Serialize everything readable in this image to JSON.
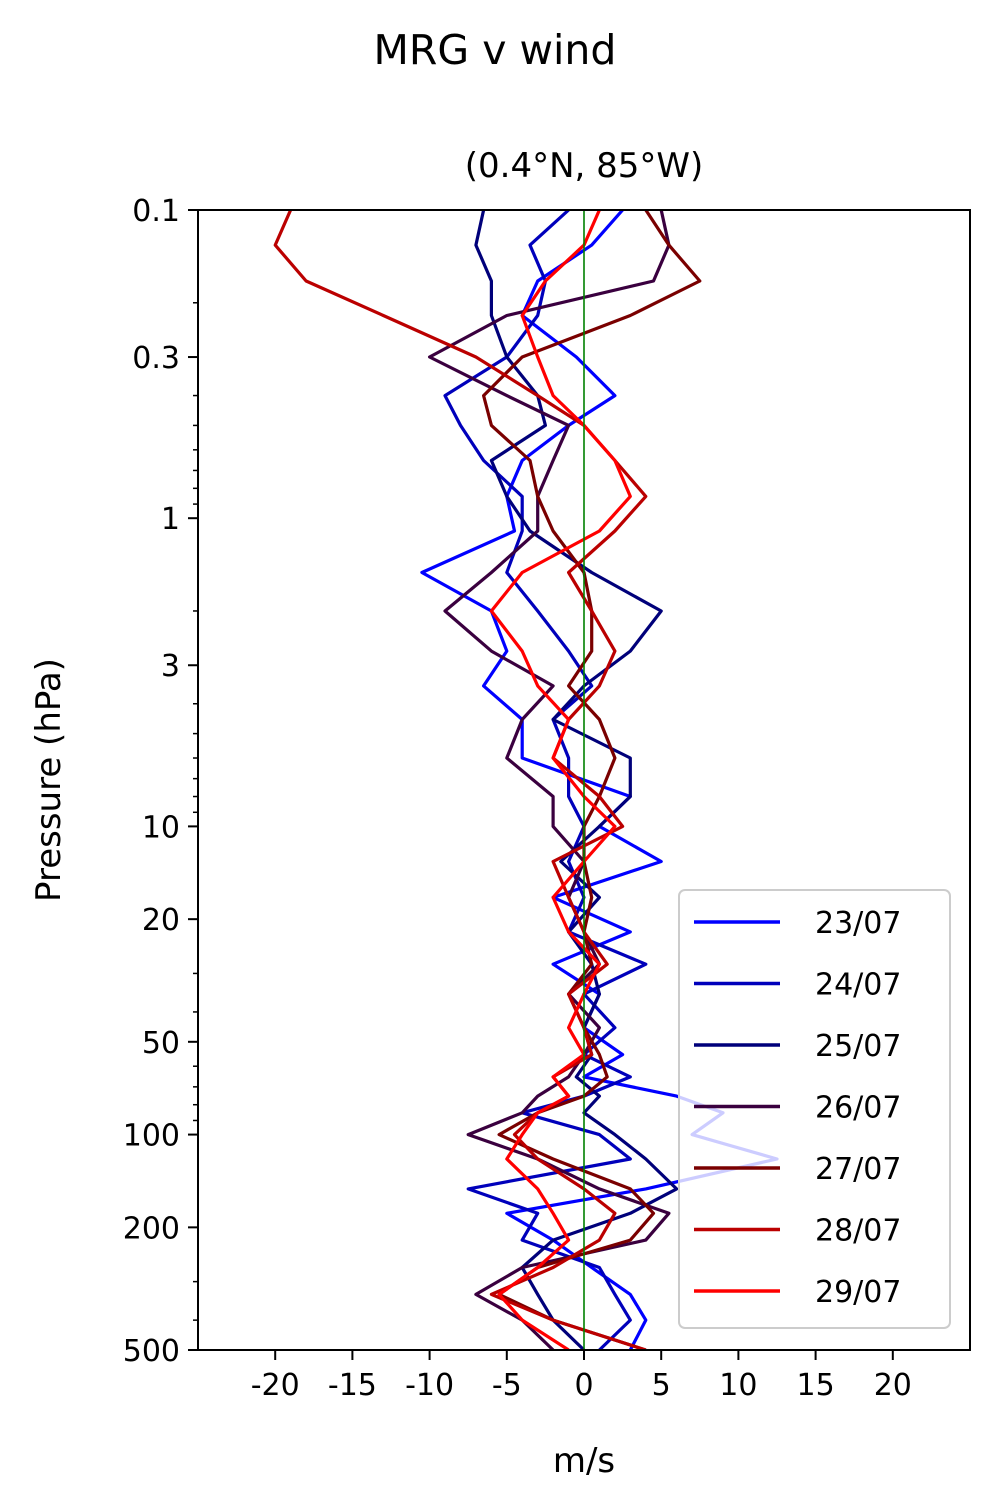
{
  "figure": {
    "title": "MRG v wind",
    "subtitle": "(0.4°N, 85°W)"
  },
  "colors": {
    "23/07": "#0000ff",
    "24/07": "#0000bb",
    "25/07": "#00007a",
    "26/07": "#3a003f",
    "27/07": "#7a0000",
    "28/07": "#bb0000",
    "29/07": "#ff0000",
    "zero_line": "#008000"
  },
  "chart_data": {
    "type": "line",
    "title": "(0.4°N, 85°W)",
    "xlabel": "m/s",
    "ylabel": "Pressure (hPa)",
    "xlim": [
      -25,
      25
    ],
    "ylim": [
      500,
      0.1
    ],
    "yscale": "log",
    "y_inverted": true,
    "xticks": [
      -20,
      -15,
      -10,
      -5,
      0,
      5,
      10,
      15,
      20
    ],
    "xtick_labels": [
      "-20",
      "-15",
      "-10",
      "-5",
      "0",
      "5",
      "10",
      "15",
      "20"
    ],
    "yticks": [
      0.1,
      0.3,
      1,
      3,
      10,
      20,
      50,
      100,
      200,
      500
    ],
    "ytick_labels": [
      "0.1",
      "0.3",
      "1",
      "3",
      "10",
      "20",
      "50",
      "100",
      "200",
      "500"
    ],
    "legend": "lower-right",
    "zero_line": 0,
    "pressure": [
      0.1,
      0.13,
      0.17,
      0.22,
      0.3,
      0.4,
      0.5,
      0.65,
      0.85,
      1.1,
      1.5,
      2,
      2.7,
      3.5,
      4.5,
      6,
      8,
      10,
      13,
      17,
      22,
      28,
      35,
      45,
      55,
      65,
      75,
      85,
      100,
      120,
      150,
      180,
      220,
      270,
      330,
      400,
      500
    ],
    "series": [
      {
        "name": "23/07",
        "values": [
          2.5,
          0.5,
          -3,
          -4,
          -0.5,
          2,
          -1,
          -4,
          -5,
          -4.5,
          -10.5,
          -6,
          -5,
          -6.5,
          -4,
          -4,
          3,
          1,
          5,
          -2,
          3,
          -2,
          1,
          0,
          2.5,
          0,
          6,
          9,
          7,
          12.5,
          4,
          -5,
          -2,
          0.5,
          3,
          4,
          3
        ]
      },
      {
        "name": "24/07",
        "values": [
          -1,
          -3.5,
          -2.5,
          -3,
          -5,
          -9,
          -8,
          -6.5,
          -4,
          -4,
          -5,
          -3,
          -1,
          0.5,
          -2,
          -1,
          -1,
          0,
          -1,
          0,
          -1,
          4,
          0,
          2,
          0,
          3,
          0,
          -4,
          1,
          3,
          -7.5,
          -3,
          -4,
          1,
          2,
          3,
          1
        ]
      },
      {
        "name": "25/07",
        "values": [
          -6.5,
          -7,
          -6,
          -6,
          -5,
          -3,
          -2.5,
          -6,
          -5,
          -3.5,
          0.5,
          5,
          3,
          0,
          -2,
          3,
          3,
          1,
          -1.5,
          1,
          -1,
          0.5,
          1,
          0,
          0.5,
          -0.5,
          1,
          0,
          2,
          4,
          6,
          3,
          -2,
          -4,
          -3,
          -2,
          0
        ]
      },
      {
        "name": "26/07",
        "values": [
          5,
          5.5,
          4.5,
          -5,
          -10,
          -5,
          -1,
          -2,
          -3,
          -3,
          -6,
          -9,
          -6,
          -2,
          -4,
          -5,
          -2,
          -2,
          0,
          -1,
          0,
          1,
          -1,
          1,
          0,
          -1,
          -3,
          -4,
          -7.5,
          -3,
          1,
          5.5,
          4,
          -4,
          -7,
          -4,
          -2
        ]
      },
      {
        "name": "27/07",
        "values": [
          4,
          5.5,
          7.5,
          3,
          -4,
          -6.5,
          -6,
          -3.5,
          -3,
          -2,
          0,
          0.5,
          0.5,
          -1,
          1,
          2,
          1,
          0,
          0,
          0.5,
          0,
          0.5,
          -1,
          0,
          1,
          1.5,
          0,
          -3,
          -5.5,
          -2,
          3,
          4.5,
          3,
          -3,
          -5.5,
          -2,
          4
        ]
      },
      {
        "name": "28/07",
        "values": [
          -19,
          -20,
          -18,
          -13,
          -7,
          -3,
          0,
          2,
          4,
          2,
          -1,
          0.5,
          2,
          1,
          -1,
          -2,
          1,
          2.5,
          -2,
          -1,
          0,
          1.5,
          -1,
          0,
          0.5,
          -2,
          -1,
          -3,
          -4.5,
          -3,
          0,
          2,
          1,
          -2,
          -6,
          -2,
          4
        ]
      },
      {
        "name": "29/07",
        "values": [
          1,
          0,
          -2.5,
          -4,
          -3,
          -2,
          0,
          2,
          3,
          1,
          -4,
          -6,
          -4,
          -3,
          -1,
          -2,
          0,
          2,
          0,
          -2,
          -1,
          1,
          0,
          -1,
          0,
          -2,
          -1,
          -3,
          -4,
          -5,
          -3,
          -2,
          -1,
          -3,
          -5.5,
          -4,
          -1
        ]
      }
    ]
  }
}
